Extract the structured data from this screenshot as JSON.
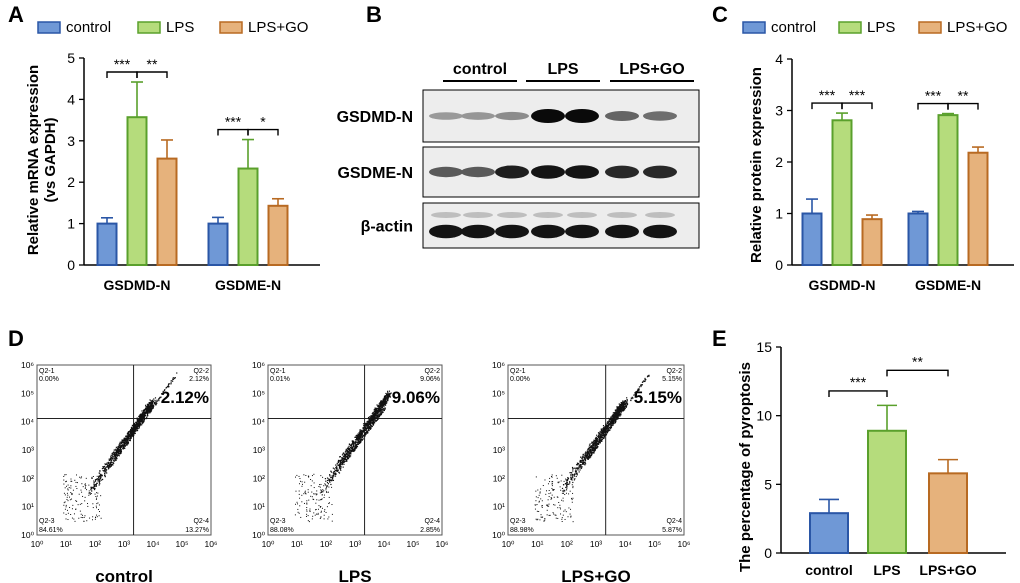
{
  "panels": {
    "A": "A",
    "B": "B",
    "C": "C",
    "D": "D",
    "E": "E"
  },
  "colors": {
    "control_fill": "#6f98d6",
    "control_edge": "#2a56a6",
    "lps_fill": "#b5dc7c",
    "lps_edge": "#5aa02c",
    "go_fill": "#e6b27c",
    "go_edge": "#b86a22"
  },
  "chart_data": [
    {
      "panel": "A",
      "type": "bar",
      "ylabel": "Relative mRNA expression (vs GAPDH)",
      "ylabel_lines": [
        "Relative mRNA expression",
        "(vs GAPDH)"
      ],
      "ylim": [
        0,
        5
      ],
      "yticks": [
        "0",
        "1",
        "2",
        "3",
        "4",
        "5"
      ],
      "legend": [
        "control",
        "LPS",
        "LPS+GO"
      ],
      "legend_placement": "top",
      "categories": [
        "GSDMD-N",
        "GSDME-N"
      ],
      "series": [
        {
          "name": "control",
          "values": [
            1.0,
            1.0
          ],
          "errors": [
            0.14,
            0.15
          ]
        },
        {
          "name": "LPS",
          "values": [
            3.57,
            2.33
          ],
          "errors": [
            0.85,
            0.7
          ]
        },
        {
          "name": "LPS+GO",
          "values": [
            2.57,
            1.43
          ],
          "errors": [
            0.45,
            0.17
          ]
        }
      ],
      "significance": [
        {
          "category": 0,
          "from": 0,
          "to": 1,
          "label": "***"
        },
        {
          "category": 0,
          "from": 1,
          "to": 2,
          "label": "**"
        },
        {
          "category": 1,
          "from": 0,
          "to": 1,
          "label": "***"
        },
        {
          "category": 1,
          "from": 1,
          "to": 2,
          "label": "*"
        }
      ]
    },
    {
      "panel": "C",
      "type": "bar",
      "ylabel": "Relative protein expression",
      "ylim": [
        0,
        4
      ],
      "yticks": [
        "0",
        "1",
        "2",
        "3",
        "4"
      ],
      "legend": [
        "control",
        "LPS",
        "LPS+GO"
      ],
      "legend_placement": "top",
      "categories": [
        "GSDMD-N",
        "GSDME-N"
      ],
      "series": [
        {
          "name": "control",
          "values": [
            1.0,
            1.0
          ],
          "errors": [
            0.28,
            0.04
          ]
        },
        {
          "name": "LPS",
          "values": [
            2.81,
            2.91
          ],
          "errors": [
            0.14,
            0.03
          ]
        },
        {
          "name": "LPS+GO",
          "values": [
            0.89,
            2.18
          ],
          "errors": [
            0.08,
            0.11
          ]
        }
      ],
      "significance": [
        {
          "category": 0,
          "from": 0,
          "to": 1,
          "label": "***"
        },
        {
          "category": 0,
          "from": 1,
          "to": 2,
          "label": "***"
        },
        {
          "category": 1,
          "from": 0,
          "to": 1,
          "label": "***"
        },
        {
          "category": 1,
          "from": 1,
          "to": 2,
          "label": "**"
        }
      ]
    },
    {
      "panel": "E",
      "type": "bar",
      "ylabel": "The percentage of pyroptosis",
      "ylim": [
        0,
        15
      ],
      "yticks": [
        "0",
        "5",
        "10",
        "15"
      ],
      "categories": [
        "control",
        "LPS",
        "LPS+GO"
      ],
      "values": [
        2.9,
        8.9,
        5.8
      ],
      "errors": [
        1.0,
        1.85,
        1.0
      ],
      "significance": [
        {
          "from": 0,
          "to": 1,
          "label": "***"
        },
        {
          "from": 1,
          "to": 2,
          "label": "**"
        }
      ]
    },
    {
      "panel": "D",
      "type": "scatter",
      "axis_scale": "log",
      "xticks": [
        "10^0",
        "10^1",
        "10^2",
        "10^3",
        "10^4",
        "10^5",
        "10^6"
      ],
      "yticks": [
        "10^0",
        "10^1",
        "10^2",
        "10^3",
        "10^4",
        "10^5",
        "10^6"
      ],
      "plots": [
        {
          "name": "control",
          "highlight": "2.12%",
          "quadrants": {
            "Q2-1": "0.00%",
            "Q2-2": "2.12%",
            "Q2-3": "84.61%",
            "Q2-4": "13.27%"
          }
        },
        {
          "name": "LPS",
          "highlight": "9.06%",
          "quadrants": {
            "Q2-1": "0.01%",
            "Q2-2": "9.06%",
            "Q2-3": "88.08%",
            "Q2-4": "2.85%"
          }
        },
        {
          "name": "LPS+GO",
          "highlight": "5.15%",
          "quadrants": {
            "Q2-1": "0.00%",
            "Q2-2": "5.15%",
            "Q2-3": "88.98%",
            "Q2-4": "5.87%"
          }
        }
      ]
    }
  ],
  "blot": {
    "groups": [
      "control",
      "LPS",
      "LPS+GO"
    ],
    "rows": [
      {
        "label": "GSDMD-N",
        "intensities": [
          0.28,
          0.3,
          0.35,
          1.0,
          1.0,
          0.55,
          0.5
        ]
      },
      {
        "label": "GSDME-N",
        "intensities": [
          0.6,
          0.6,
          0.9,
          0.95,
          0.95,
          0.85,
          0.85
        ]
      },
      {
        "label": "β-actin",
        "intensities": [
          0.95,
          0.95,
          0.95,
          0.95,
          0.95,
          0.95,
          0.95
        ]
      }
    ]
  }
}
